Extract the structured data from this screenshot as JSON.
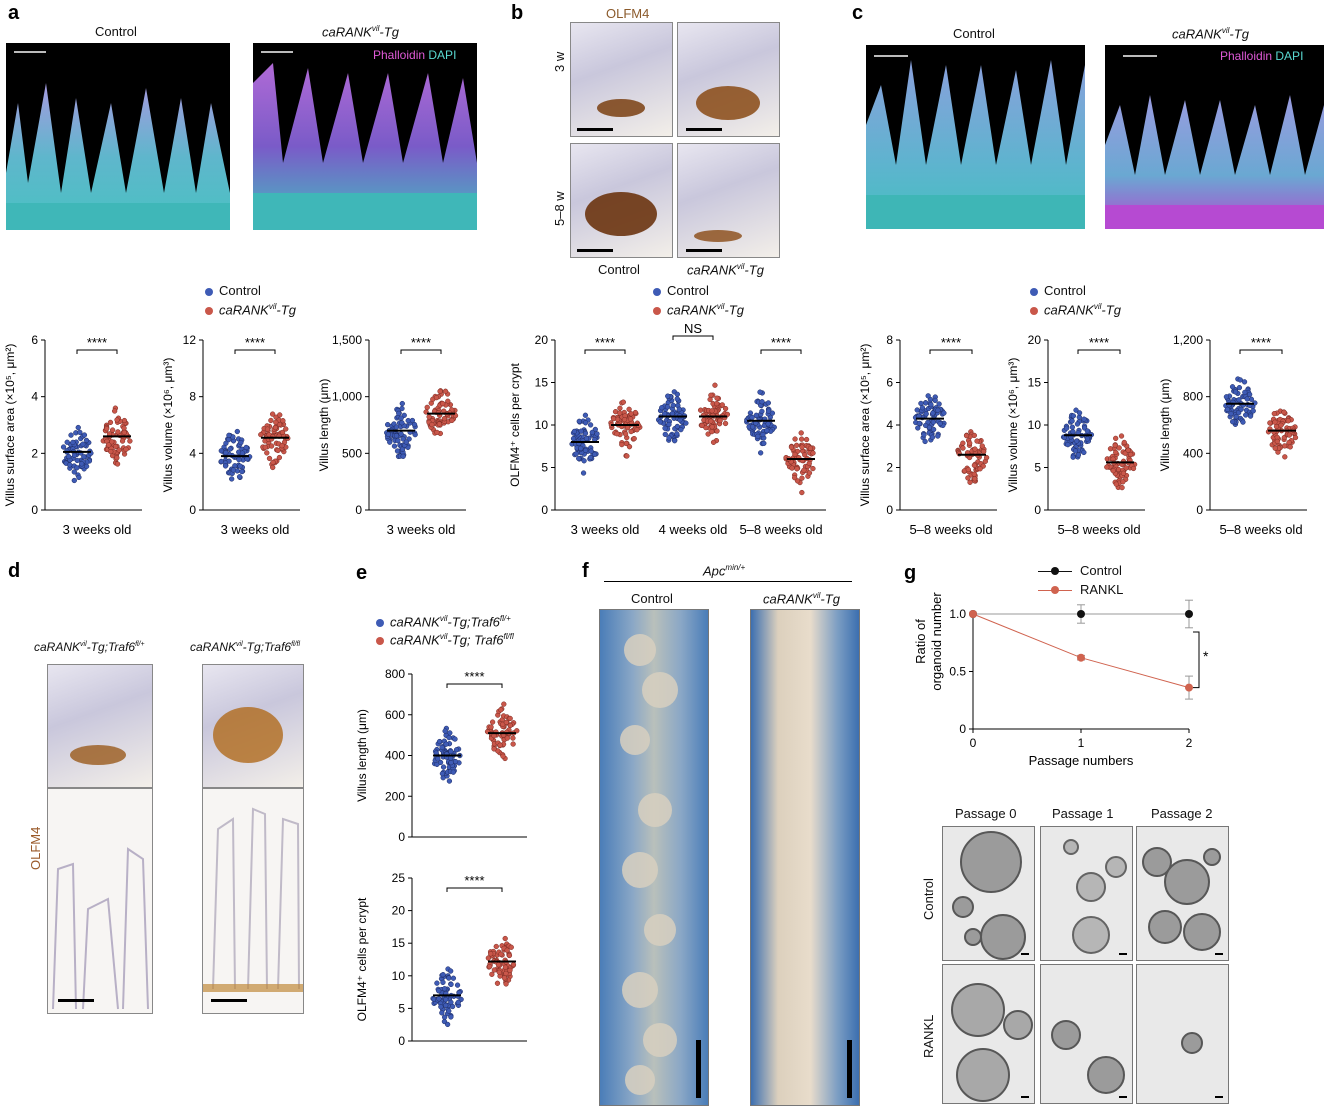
{
  "panel_letters": [
    "a",
    "b",
    "c",
    "d",
    "e",
    "f",
    "g"
  ],
  "panel_a": {
    "left_title": "Control",
    "right_title": "caRANK",
    "right_sup": "vil",
    "right_suffix": "-Tg",
    "stain1": "Phalloidin",
    "stain2": "DAPI"
  },
  "panel_b": {
    "title": "OLFM4",
    "row1": "3 w",
    "row2": "5–8 w",
    "col1": "Control",
    "col2_main": "caRANK",
    "col2_sup": "vil",
    "col2_suffix": "-Tg"
  },
  "panel_c": {
    "left_title": "Control",
    "right_title": "caRANK",
    "right_sup": "vil",
    "right_suffix": "-Tg",
    "stain1": "Phalloidin",
    "stain2": "DAPI"
  },
  "legend_control_label": "Control",
  "legend_tg_main": "caRANK",
  "legend_tg_sup": "vil",
  "legend_tg_suffix": "-Tg",
  "colors": {
    "control": "#3e5bb5",
    "tg": "#c9574a",
    "control_dot_dark": "#1d2b63",
    "tg_dot_dark": "#7a2a22"
  },
  "sig": {
    "four": "****",
    "ns": "NS",
    "one": "*"
  },
  "chart_data": [
    {
      "id": "a1",
      "type": "scatter",
      "ylabel": "Villus surface area (×10⁵, μm²)",
      "ylim": [
        0,
        6
      ],
      "yticks": [
        "0",
        "2",
        "4",
        "6"
      ],
      "categories": [
        "3 weeks old"
      ],
      "series": [
        {
          "name": "Control",
          "median": 2.05
        },
        {
          "name": "caRANKvil-Tg",
          "median": 2.6
        }
      ],
      "annotation": "****"
    },
    {
      "id": "a2",
      "type": "scatter",
      "ylabel": "Villus volume (×10⁶, μm³)",
      "ylim": [
        0,
        12
      ],
      "yticks": [
        "0",
        "4",
        "8",
        "12"
      ],
      "categories": [
        "3 weeks old"
      ],
      "series": [
        {
          "name": "Control",
          "median": 3.8
        },
        {
          "name": "caRANKvil-Tg",
          "median": 5.1
        }
      ],
      "annotation": "****"
    },
    {
      "id": "a3",
      "type": "scatter",
      "ylabel": "Villus length (μm)",
      "ylim": [
        0,
        1500
      ],
      "yticks": [
        "0",
        "500",
        "1,000",
        "1,500"
      ],
      "categories": [
        "3 weeks old"
      ],
      "series": [
        {
          "name": "Control",
          "median": 700
        },
        {
          "name": "caRANKvil-Tg",
          "median": 850
        }
      ],
      "annotation": "****"
    },
    {
      "id": "b",
      "type": "scatter",
      "ylabel": "OLFM4⁺ cells per crypt",
      "ylim": [
        0,
        20
      ],
      "yticks": [
        "0",
        "5",
        "10",
        "15",
        "20"
      ],
      "categories": [
        "3 weeks old",
        "4 weeks old",
        "5–8 weeks old"
      ],
      "series": [
        {
          "name": "Control",
          "medians": [
            8,
            11,
            10.5
          ]
        },
        {
          "name": "caRANKvil-Tg",
          "medians": [
            10,
            11,
            6
          ]
        }
      ],
      "annotations": [
        "****",
        "NS",
        "****"
      ]
    },
    {
      "id": "c1",
      "type": "scatter",
      "ylabel": "Villus surface area (×10⁵, μm²)",
      "ylim": [
        0,
        8
      ],
      "yticks": [
        "0",
        "2",
        "4",
        "6",
        "8"
      ],
      "categories": [
        "5–8 weeks old"
      ],
      "series": [
        {
          "name": "Control",
          "median": 4.3
        },
        {
          "name": "caRANKvil-Tg",
          "median": 2.6
        }
      ],
      "annotation": "****"
    },
    {
      "id": "c2",
      "type": "scatter",
      "ylabel": "Villus volume (×10⁶, μm³)",
      "ylim": [
        0,
        20
      ],
      "yticks": [
        "0",
        "5",
        "10",
        "15",
        "20"
      ],
      "categories": [
        "5–8 weeks old"
      ],
      "series": [
        {
          "name": "Control",
          "median": 8.8
        },
        {
          "name": "caRANKvil-Tg",
          "median": 5.6
        }
      ],
      "annotation": "****"
    },
    {
      "id": "c3",
      "type": "scatter",
      "ylabel": "Villus length (μm)",
      "ylim": [
        0,
        1200
      ],
      "yticks": [
        "0",
        "400",
        "800",
        "1,200"
      ],
      "categories": [
        "5–8 weeks old"
      ],
      "series": [
        {
          "name": "Control",
          "median": 750
        },
        {
          "name": "caRANKvil-Tg",
          "median": 560
        }
      ],
      "annotation": "****"
    },
    {
      "id": "e1",
      "type": "scatter",
      "ylabel": "Villus length (μm)",
      "ylim": [
        0,
        800
      ],
      "yticks": [
        "0",
        "200",
        "400",
        "600",
        "800"
      ],
      "series": [
        {
          "name": "caRANKvil-Tg;Traf6fl/+",
          "median": 400
        },
        {
          "name": "caRANKvil-Tg; Traf6fl/fl",
          "median": 510
        }
      ],
      "annotation": "****"
    },
    {
      "id": "e2",
      "type": "scatter",
      "ylabel": "OLFM4⁺ cells per crypt",
      "ylim": [
        0,
        25
      ],
      "yticks": [
        "0",
        "5",
        "10",
        "15",
        "20",
        "25"
      ],
      "series": [
        {
          "name": "caRANKvil-Tg;Traf6fl/+",
          "median": 7
        },
        {
          "name": "caRANKvil-Tg; Traf6fl/fl",
          "median": 12.2
        }
      ],
      "annotation": "****"
    },
    {
      "id": "g",
      "type": "line",
      "ylabel": "Ratio of organoid number",
      "xlabel": "Passage numbers",
      "x": [
        0,
        1,
        2
      ],
      "xticks": [
        "0",
        "1",
        "2"
      ],
      "ylim": [
        0,
        1.0
      ],
      "yticks": [
        "0",
        "0.5",
        "1.0"
      ],
      "series": [
        {
          "name": "Control",
          "values": [
            1.0,
            1.0,
            1.0
          ],
          "err": [
            0,
            0.08,
            0.12
          ]
        },
        {
          "name": "RANKL",
          "values": [
            1.0,
            0.62,
            0.36
          ],
          "err": [
            0,
            0.02,
            0.1
          ]
        }
      ],
      "annotation": "*"
    }
  ],
  "panel_d": {
    "left_main": "caRANK",
    "left_sup": "vil",
    "left_mid": "-Tg;Traf6",
    "left_sup2": "fl/+",
    "right_main": "caRANK",
    "right_sup": "vil",
    "right_mid": "-Tg;Traf6",
    "right_sup2": "fl/fl",
    "side": "OLFM4"
  },
  "panel_e": {
    "leg1_main": "caRANK",
    "leg1_sup": "vil",
    "leg1_mid": "-Tg;Traf6",
    "leg1_sup2": "fl/+",
    "leg2_main": "caRANK",
    "leg2_sup": "vil",
    "leg2_mid": "-Tg; Traf6",
    "leg2_sup2": "fl/fl"
  },
  "panel_f": {
    "title_main": "Apc",
    "title_sup": "min/+",
    "left": "Control",
    "right_main": "caRANK",
    "right_sup": "vil",
    "right_suffix": "-Tg"
  },
  "panel_g": {
    "legend1": "Control",
    "legend2": "RANKL",
    "cols": [
      "Passage 0",
      "Passage 1",
      "Passage 2"
    ],
    "rows": [
      "Control",
      "RANKL"
    ],
    "control_color": "#111111",
    "rankl_color": "#d0634f"
  }
}
